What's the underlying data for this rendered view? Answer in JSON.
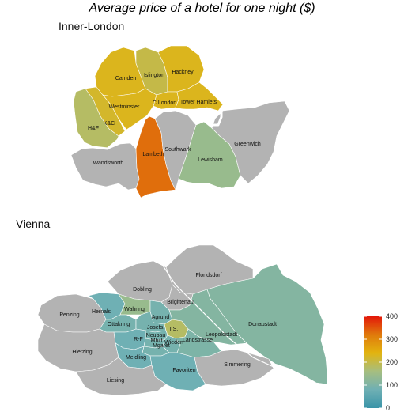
{
  "title": "Average price of a hotel for one night ($)",
  "panels": {
    "london": {
      "title": "Inner-London"
    },
    "vienna": {
      "title": "Vienna"
    }
  },
  "colors": {
    "no_data": "#b3b3b3",
    "river": "#ffffff",
    "scale": [
      "#3a94a8",
      "#6fb0b4",
      "#a6be80",
      "#e2b40f",
      "#e07a0c",
      "#e3170a"
    ]
  },
  "legend": {
    "min": 0,
    "max": 400,
    "ticks": [
      "0",
      "100",
      "200",
      "300",
      "400"
    ]
  },
  "london_districts": [
    {
      "name": "Camden",
      "price": 230
    },
    {
      "name": "Islington",
      "price": 200
    },
    {
      "name": "Hackney",
      "price": 230
    },
    {
      "name": "Westminster",
      "price": 230
    },
    {
      "name": "C.London",
      "price": 230
    },
    {
      "name": "Tower Hamlets",
      "price": 230
    },
    {
      "name": "K&C",
      "price": 220
    },
    {
      "name": "H&F",
      "price": 180
    },
    {
      "name": "Lambeth",
      "price": 330
    },
    {
      "name": "Southwark",
      "price": null
    },
    {
      "name": "Lewisham",
      "price": 140
    },
    {
      "name": "Greenwich",
      "price": null
    },
    {
      "name": "Wandsworth",
      "price": null
    }
  ],
  "vienna_districts": [
    {
      "name": "Floridsdorf",
      "price": null
    },
    {
      "name": "Dobling",
      "price": null
    },
    {
      "name": "Brigittenau",
      "price": null
    },
    {
      "name": "Donaustadt",
      "price": 110
    },
    {
      "name": "Wahring",
      "price": 140
    },
    {
      "name": "Hernals",
      "price": 80
    },
    {
      "name": "Penzing",
      "price": null
    },
    {
      "name": "Agrund",
      "price": 90
    },
    {
      "name": "Ottakring",
      "price": 90
    },
    {
      "name": "Josefs.",
      "price": 90
    },
    {
      "name": "Neubau",
      "price": 90
    },
    {
      "name": "I.S.",
      "price": 180
    },
    {
      "name": "Leopoldstadt",
      "price": 110
    },
    {
      "name": "R-F",
      "price": 80
    },
    {
      "name": "Mhilf",
      "price": 90
    },
    {
      "name": "Mgaret",
      "price": 90
    },
    {
      "name": "Wieden",
      "price": 90
    },
    {
      "name": "Landstrasse",
      "price": 100
    },
    {
      "name": "Hietzing",
      "price": null
    },
    {
      "name": "Meidling",
      "price": 80
    },
    {
      "name": "Favoriten",
      "price": 80
    },
    {
      "name": "Simmering",
      "price": null
    },
    {
      "name": "Liesing",
      "price": null
    }
  ]
}
